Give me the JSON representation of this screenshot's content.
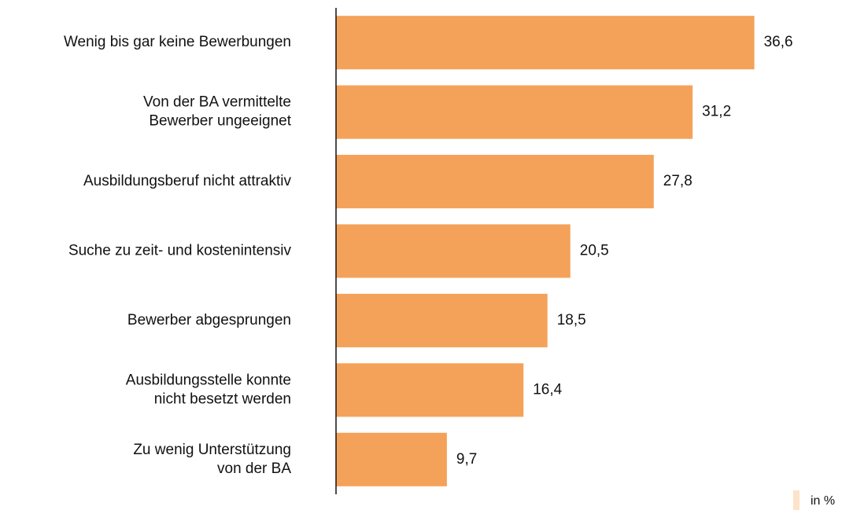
{
  "chart_data": {
    "type": "bar",
    "orientation": "horizontal",
    "categories": [
      "Wenig bis gar keine Bewerbungen",
      "Von der BA vermittelte\nBewerber ungeeignet",
      "Ausbildungsberuf nicht attraktiv",
      "Suche zu zeit- und kostenintensiv",
      "Bewerber abgesprungen",
      "Ausbildungsstelle konnte\nnicht besetzt werden",
      "Zu wenig Unterstützung\nvon der BA"
    ],
    "values": [
      36.6,
      31.2,
      27.8,
      20.5,
      18.5,
      16.4,
      9.7
    ],
    "value_labels": [
      "36,6",
      "31,2",
      "27,8",
      "20,5",
      "18,5",
      "16,4",
      "9,7"
    ],
    "color": "#f4a259",
    "xlim": [
      0,
      40
    ],
    "legend": {
      "label": "in %",
      "color": "#fde3c8",
      "position": "lower right"
    }
  }
}
